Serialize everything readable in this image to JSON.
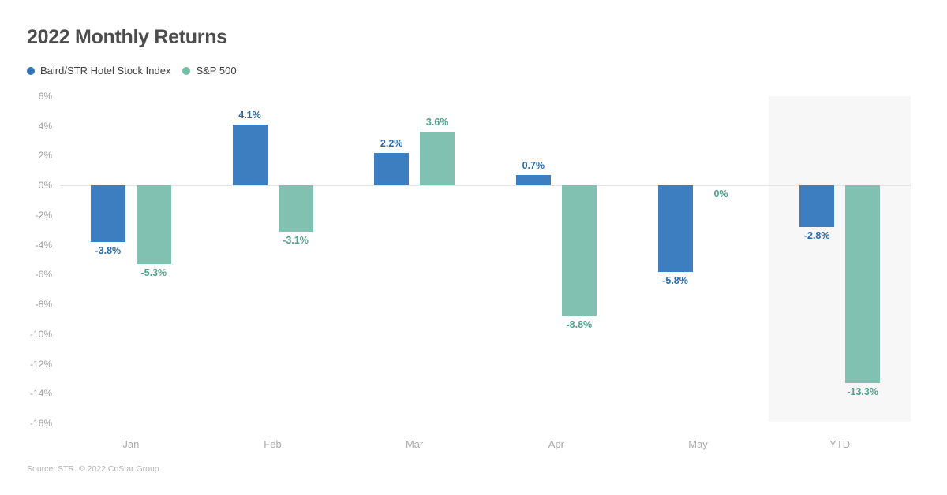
{
  "title": "2022 Monthly Returns",
  "legend": [
    {
      "label": "Baird/STR Hotel Stock Index",
      "color": "#3472b5"
    },
    {
      "label": "S&P 500",
      "color": "#74bda9"
    }
  ],
  "source": "Source: STR. © 2022 CoStar Group",
  "chart_data": {
    "type": "bar",
    "title": "2022 Monthly Returns",
    "categories": [
      "Jan",
      "Feb",
      "Mar",
      "Apr",
      "May",
      "YTD"
    ],
    "series": [
      {
        "name": "Baird/STR Hotel Stock Index",
        "color": "#3d7ec1",
        "label_color": "#2a6aa6",
        "values": [
          -3.8,
          4.1,
          2.2,
          0.7,
          -5.8,
          -2.8
        ]
      },
      {
        "name": "S&P 500",
        "color": "#80c1b2",
        "label_color": "#4fa28f",
        "values": [
          -5.3,
          -3.1,
          3.6,
          -8.8,
          0,
          -13.3
        ]
      }
    ],
    "value_labels": [
      [
        "-3.8%",
        "4.1%",
        "2.2%",
        "0.7%",
        "-5.8%",
        "-2.8%"
      ],
      [
        "-5.3%",
        "-3.1%",
        "3.6%",
        "-8.8%",
        "0%",
        "-13.3%"
      ]
    ],
    "yticks": [
      6,
      4,
      2,
      0,
      -2,
      -4,
      -6,
      -8,
      -10,
      -12,
      -14,
      -16
    ],
    "ytick_labels": [
      "6%",
      "4%",
      "2%",
      "0%",
      "-2%",
      "-4%",
      "-6%",
      "-8%",
      "-10%",
      "-12%",
      "-14%",
      "-16%"
    ],
    "ylim": [
      -16,
      6
    ],
    "xlabel": "",
    "ylabel": "",
    "grid": false,
    "legend_position": "top-left",
    "highlight_category": "YTD",
    "highlight_color": "#f7f7f7",
    "zero_line_color": "#e4e4e4"
  }
}
